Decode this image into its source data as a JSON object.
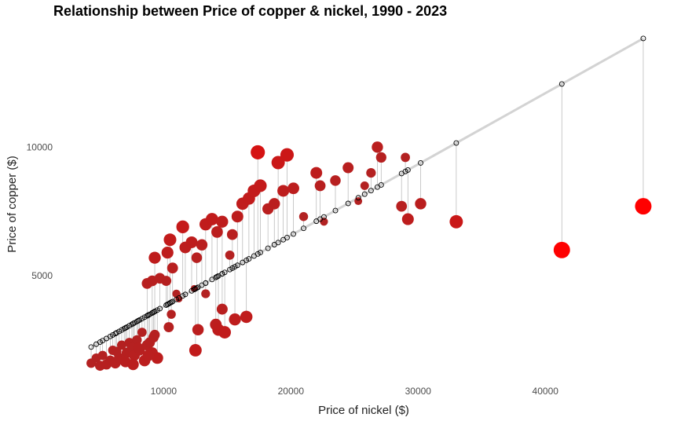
{
  "chart_data": {
    "type": "scatter",
    "title": "Relationship between Price of copper & nickel, 1990 - 2023",
    "xlabel": "Price of nickel ($)",
    "ylabel": "Price of copper ($)",
    "xlim": [
      3000,
      49000
    ],
    "ylim": [
      1000,
      14500
    ],
    "xticks": [
      10000,
      20000,
      30000,
      40000
    ],
    "yticks": [
      5000,
      10000
    ],
    "grid": false,
    "legend": "none",
    "colors": {
      "point_low": "#b22222",
      "point_high": "#ff0000",
      "fit_line": "#d3d3d3",
      "residual": "#bdbdbd",
      "fitted_marker": "#000000"
    },
    "fit": {
      "slope": 0.2765,
      "intercept": 1037
    },
    "points": [
      [
        4300,
        1600
      ],
      [
        4700,
        1800
      ],
      [
        5000,
        1500
      ],
      [
        5200,
        1900
      ],
      [
        5500,
        1550
      ],
      [
        5800,
        1700
      ],
      [
        6000,
        2100
      ],
      [
        6200,
        1600
      ],
      [
        6500,
        1800
      ],
      [
        6700,
        2300
      ],
      [
        6900,
        1700
      ],
      [
        7100,
        2000
      ],
      [
        7300,
        2400
      ],
      [
        7500,
        2200
      ],
      [
        7700,
        1900
      ],
      [
        7900,
        2500
      ],
      [
        8100,
        2100
      ],
      [
        8300,
        2800
      ],
      [
        8500,
        1700
      ],
      [
        8700,
        2300
      ],
      [
        8900,
        2400
      ],
      [
        9100,
        2000
      ],
      [
        9300,
        2700
      ],
      [
        9500,
        1800
      ],
      [
        7000,
        1650
      ],
      [
        7600,
        1550
      ],
      [
        8000,
        2200
      ],
      [
        8800,
        1900
      ],
      [
        9200,
        2600
      ],
      [
        6300,
        2050
      ],
      [
        8700,
        4700
      ],
      [
        9100,
        4800
      ],
      [
        9300,
        5700
      ],
      [
        9700,
        4900
      ],
      [
        10200,
        4800
      ],
      [
        10300,
        5900
      ],
      [
        10500,
        6400
      ],
      [
        10700,
        5300
      ],
      [
        11000,
        4300
      ],
      [
        11500,
        6900
      ],
      [
        11700,
        6100
      ],
      [
        12200,
        6300
      ],
      [
        12600,
        5700
      ],
      [
        12400,
        4500
      ],
      [
        13000,
        6200
      ],
      [
        13300,
        7000
      ],
      [
        13800,
        7200
      ],
      [
        14200,
        6700
      ],
      [
        14600,
        7100
      ],
      [
        15200,
        5800
      ],
      [
        15400,
        6600
      ],
      [
        15800,
        7300
      ],
      [
        16200,
        7800
      ],
      [
        16700,
        8000
      ],
      [
        17100,
        8300
      ],
      [
        17400,
        9800
      ],
      [
        17600,
        8500
      ],
      [
        18200,
        7600
      ],
      [
        18700,
        7800
      ],
      [
        19000,
        9400
      ],
      [
        19400,
        8300
      ],
      [
        19700,
        9700
      ],
      [
        20200,
        8400
      ],
      [
        21000,
        7300
      ],
      [
        22000,
        9000
      ],
      [
        22300,
        8500
      ],
      [
        22600,
        7100
      ],
      [
        23500,
        8700
      ],
      [
        24500,
        9200
      ],
      [
        25300,
        7900
      ],
      [
        25800,
        8500
      ],
      [
        26300,
        9000
      ],
      [
        26800,
        10000
      ],
      [
        27100,
        9600
      ],
      [
        28700,
        7700
      ],
      [
        29000,
        9600
      ],
      [
        29200,
        7200
      ],
      [
        30200,
        7800
      ],
      [
        33000,
        7100
      ],
      [
        41300,
        6000
      ],
      [
        47700,
        7700
      ],
      [
        10400,
        3000
      ],
      [
        10600,
        3500
      ],
      [
        11200,
        4100
      ],
      [
        12500,
        2100
      ],
      [
        12700,
        2900
      ],
      [
        14100,
        3100
      ],
      [
        14300,
        2900
      ],
      [
        14600,
        3700
      ],
      [
        14800,
        2800
      ],
      [
        15600,
        3300
      ],
      [
        16500,
        3400
      ],
      [
        13300,
        4300
      ]
    ]
  }
}
